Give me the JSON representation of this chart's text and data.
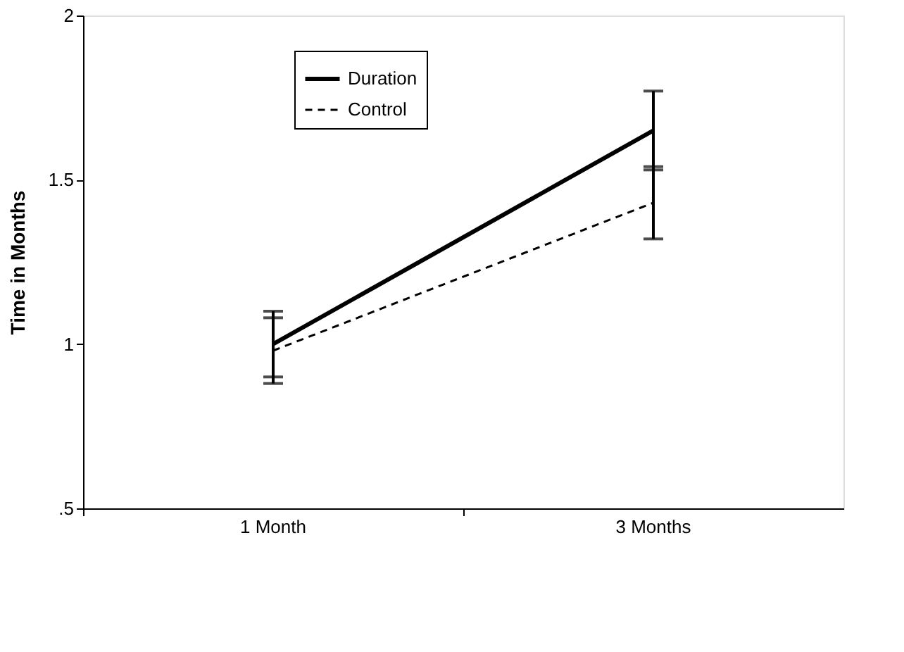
{
  "chart_data": {
    "type": "line",
    "categories": [
      "1 Month",
      "3 Months"
    ],
    "ylabel": "Time in Months",
    "series": [
      {
        "name": "Duration",
        "color": "#000000",
        "values": [
          1.0,
          1.65
        ],
        "errors": [
          0.1,
          0.12
        ],
        "line_style": "solid"
      },
      {
        "name": "Control",
        "color": "#000000",
        "values": [
          0.98,
          1.43
        ],
        "errors": [
          0.1,
          0.11
        ],
        "line_style": "dashed"
      }
    ],
    "ylim": [
      0.5,
      2
    ],
    "yticks": [
      {
        "value": 0.5,
        "label": ".5"
      },
      1,
      1.5,
      2
    ],
    "grid": false,
    "legend": "top",
    "marker": "none"
  }
}
